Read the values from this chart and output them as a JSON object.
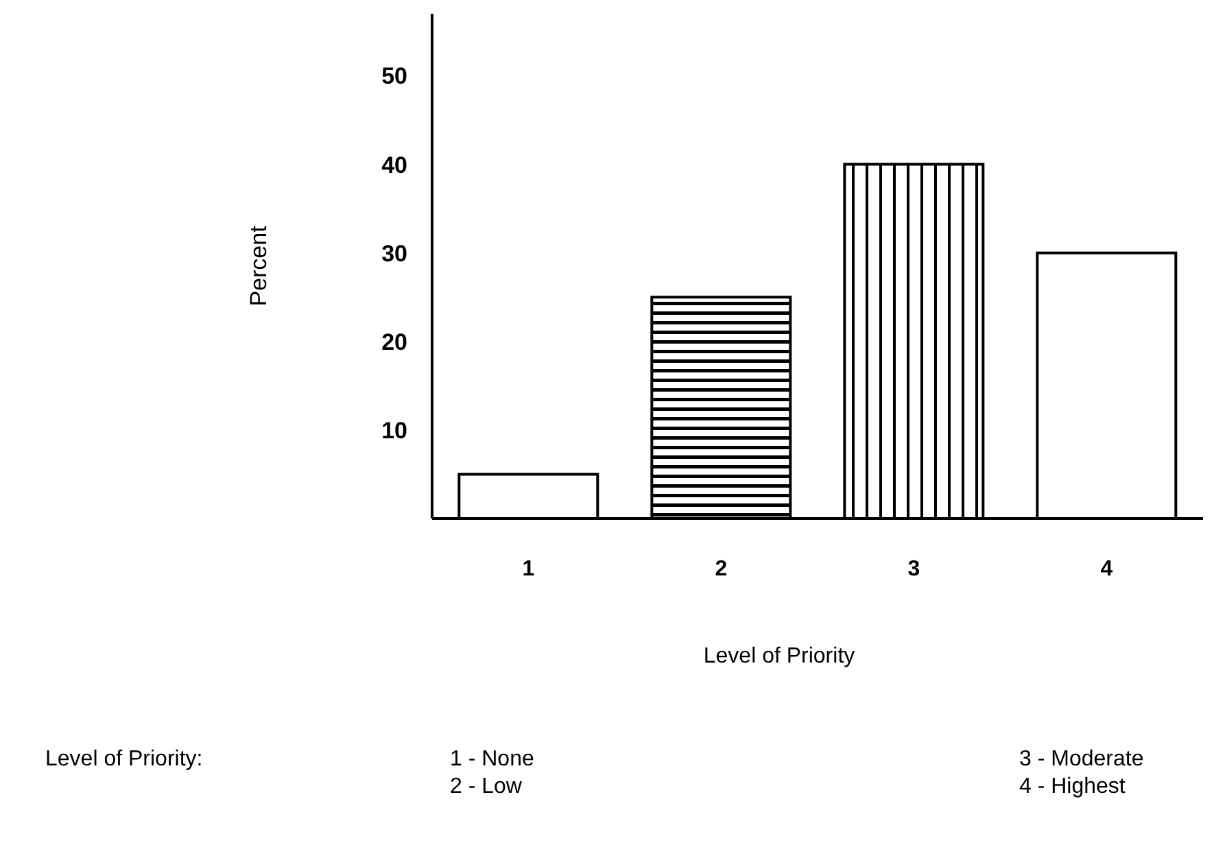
{
  "chart_data": {
    "type": "bar",
    "xlabel": "Level of Priority",
    "ylabel": "Percent",
    "categories": [
      "1",
      "2",
      "3",
      "4"
    ],
    "values": [
      5,
      25,
      40,
      30
    ],
    "color": "#000000",
    "ylim": [
      0,
      57
    ],
    "yticks": [
      10,
      20,
      30,
      40,
      50
    ],
    "annotations": [
      "Level of Priority:",
      "1 - None",
      "2 - Low",
      "3 - Moderate",
      "4 - Highest"
    ]
  }
}
